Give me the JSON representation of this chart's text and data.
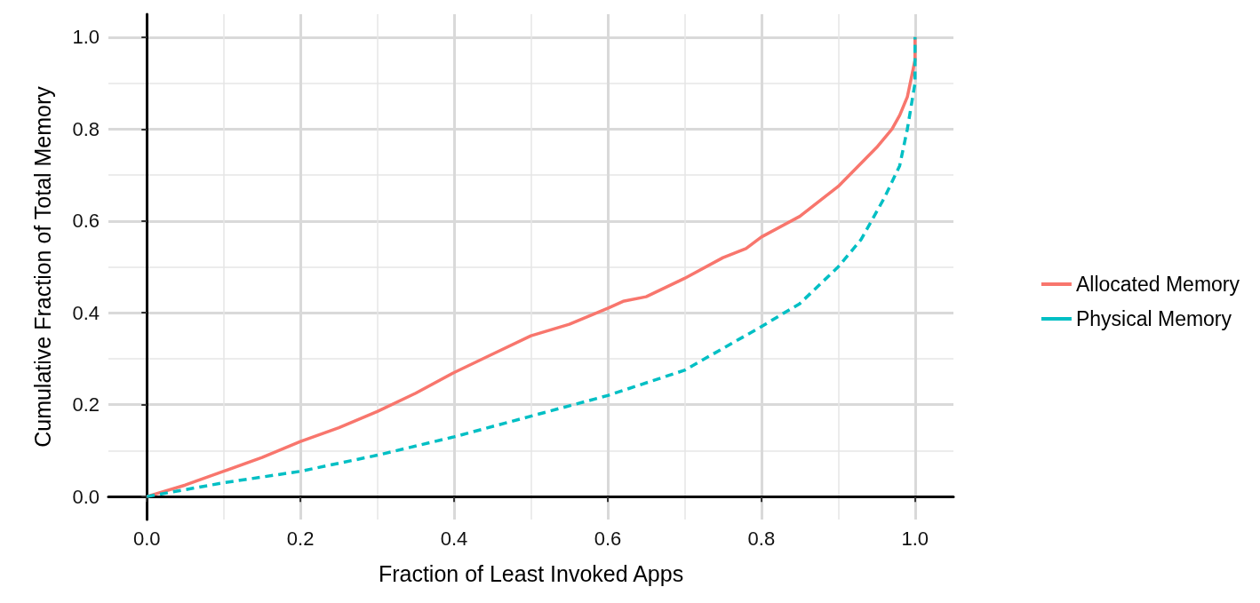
{
  "chart_data": {
    "type": "line",
    "xlabel": "Fraction of Least Invoked Apps",
    "ylabel": "Cumulative Fraction of Total Memory",
    "xlim": [
      -0.05,
      1.05
    ],
    "ylim": [
      -0.05,
      1.05
    ],
    "xticks": [
      {
        "value": 0,
        "label": "0.0"
      },
      0.2,
      0.4,
      0.6,
      0.8,
      {
        "value": 1,
        "label": "1.0"
      }
    ],
    "yticks": [
      {
        "value": 0,
        "label": "0.0"
      },
      0.2,
      0.4,
      0.6,
      0.8,
      {
        "value": 1,
        "label": "1.0"
      }
    ],
    "grid": true,
    "legend": "right",
    "marker": "none",
    "series": [
      {
        "name": "Allocated Memory",
        "color": "#f8766d",
        "line_style": "solid",
        "x": [
          0,
          0.05,
          0.1,
          0.15,
          0.2,
          0.25,
          0.3,
          0.35,
          0.4,
          0.45,
          0.5,
          0.55,
          0.6,
          0.62,
          0.65,
          0.7,
          0.75,
          0.78,
          0.8,
          0.85,
          0.9,
          0.95,
          0.97,
          0.98,
          0.99,
          1.0,
          1.0
        ],
        "values": [
          0,
          0.025,
          0.055,
          0.085,
          0.12,
          0.15,
          0.185,
          0.225,
          0.27,
          0.31,
          0.35,
          0.375,
          0.41,
          0.425,
          0.435,
          0.475,
          0.52,
          0.54,
          0.565,
          0.61,
          0.675,
          0.76,
          0.8,
          0.83,
          0.87,
          0.95,
          1.0
        ]
      },
      {
        "name": "Physical Memory",
        "color": "#00bfc4",
        "line_style": "dashed",
        "x": [
          0,
          0.05,
          0.1,
          0.2,
          0.3,
          0.4,
          0.5,
          0.6,
          0.7,
          0.8,
          0.85,
          0.9,
          0.93,
          0.96,
          0.98,
          0.99,
          1.0,
          1.0
        ],
        "values": [
          0,
          0.015,
          0.03,
          0.055,
          0.09,
          0.13,
          0.175,
          0.22,
          0.275,
          0.37,
          0.42,
          0.5,
          0.56,
          0.65,
          0.72,
          0.8,
          0.9,
          1.0
        ]
      }
    ]
  }
}
